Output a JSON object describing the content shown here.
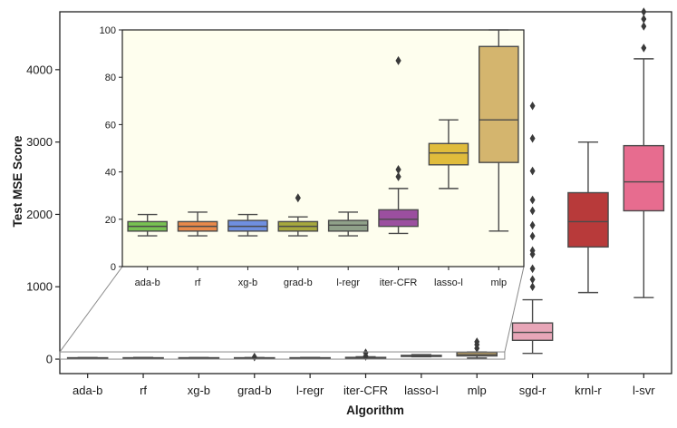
{
  "chart_data": [
    {
      "type": "box",
      "xlabel": "Algorithm",
      "ylabel": "Test MSE Score",
      "ylim": [
        -200,
        4800
      ],
      "yticks": [
        0,
        1000,
        2000,
        3000,
        4000
      ],
      "categories": [
        "ada-b",
        "rf",
        "xg-b",
        "grad-b",
        "l-regr",
        "iter-CFR",
        "lasso-l",
        "mlp",
        "sgd-r",
        "krnl-r",
        "l-svr"
      ],
      "colors": [
        "#77c152",
        "#e8894a",
        "#6f8fe0",
        "#a6a83e",
        "#8fa089",
        "#9b4f9f",
        "#e0bc3c",
        "#d4b56e",
        "#e8a6b8",
        "#b83a3a",
        "#e76c8f"
      ],
      "boxes": [
        {
          "whislo": 13,
          "q1": 15,
          "med": 17,
          "q3": 19,
          "whishi": 22,
          "fliers": []
        },
        {
          "whislo": 13,
          "q1": 15,
          "med": 17,
          "q3": 19,
          "whishi": 23,
          "fliers": []
        },
        {
          "whislo": 13,
          "q1": 15,
          "med": 17,
          "q3": 19.5,
          "whishi": 22,
          "fliers": []
        },
        {
          "whislo": 13,
          "q1": 15,
          "med": 17,
          "q3": 19,
          "whishi": 21,
          "fliers": [
            29
          ]
        },
        {
          "whislo": 13,
          "q1": 15,
          "med": 17.5,
          "q3": 19.5,
          "whishi": 23,
          "fliers": []
        },
        {
          "whislo": 14,
          "q1": 17,
          "med": 20,
          "q3": 24,
          "whishi": 33,
          "fliers": [
            38,
            41,
            87
          ]
        },
        {
          "whislo": 33,
          "q1": 43,
          "med": 48,
          "q3": 52,
          "whishi": 62,
          "fliers": []
        },
        {
          "whislo": 15,
          "q1": 44,
          "med": 62,
          "q3": 93,
          "whishi": 100,
          "fliers": [
            150,
            200,
            240
          ]
        },
        {
          "whislo": 80,
          "q1": 260,
          "med": 370,
          "q3": 500,
          "whishi": 820,
          "fliers": [
            1000,
            1100,
            1250,
            1450,
            1500,
            1700,
            1850,
            2050,
            2200,
            2600,
            3050,
            3500
          ]
        },
        {
          "whislo": 920,
          "q1": 1550,
          "med": 1900,
          "q3": 2300,
          "whishi": 3000,
          "fliers": []
        },
        {
          "whislo": 850,
          "q1": 2050,
          "med": 2450,
          "q3": 2950,
          "whishi": 4150,
          "fliers": [
            4300,
            4600,
            4700,
            4800
          ]
        }
      ]
    },
    {
      "type": "box",
      "title": "inset",
      "ylim": [
        0,
        100
      ],
      "yticks": [
        0,
        20,
        40,
        60,
        80,
        100
      ],
      "categories": [
        "ada-b",
        "rf",
        "xg-b",
        "grad-b",
        "l-regr",
        "iter-CFR",
        "lasso-l",
        "mlp"
      ],
      "background": "#fefeee"
    }
  ]
}
